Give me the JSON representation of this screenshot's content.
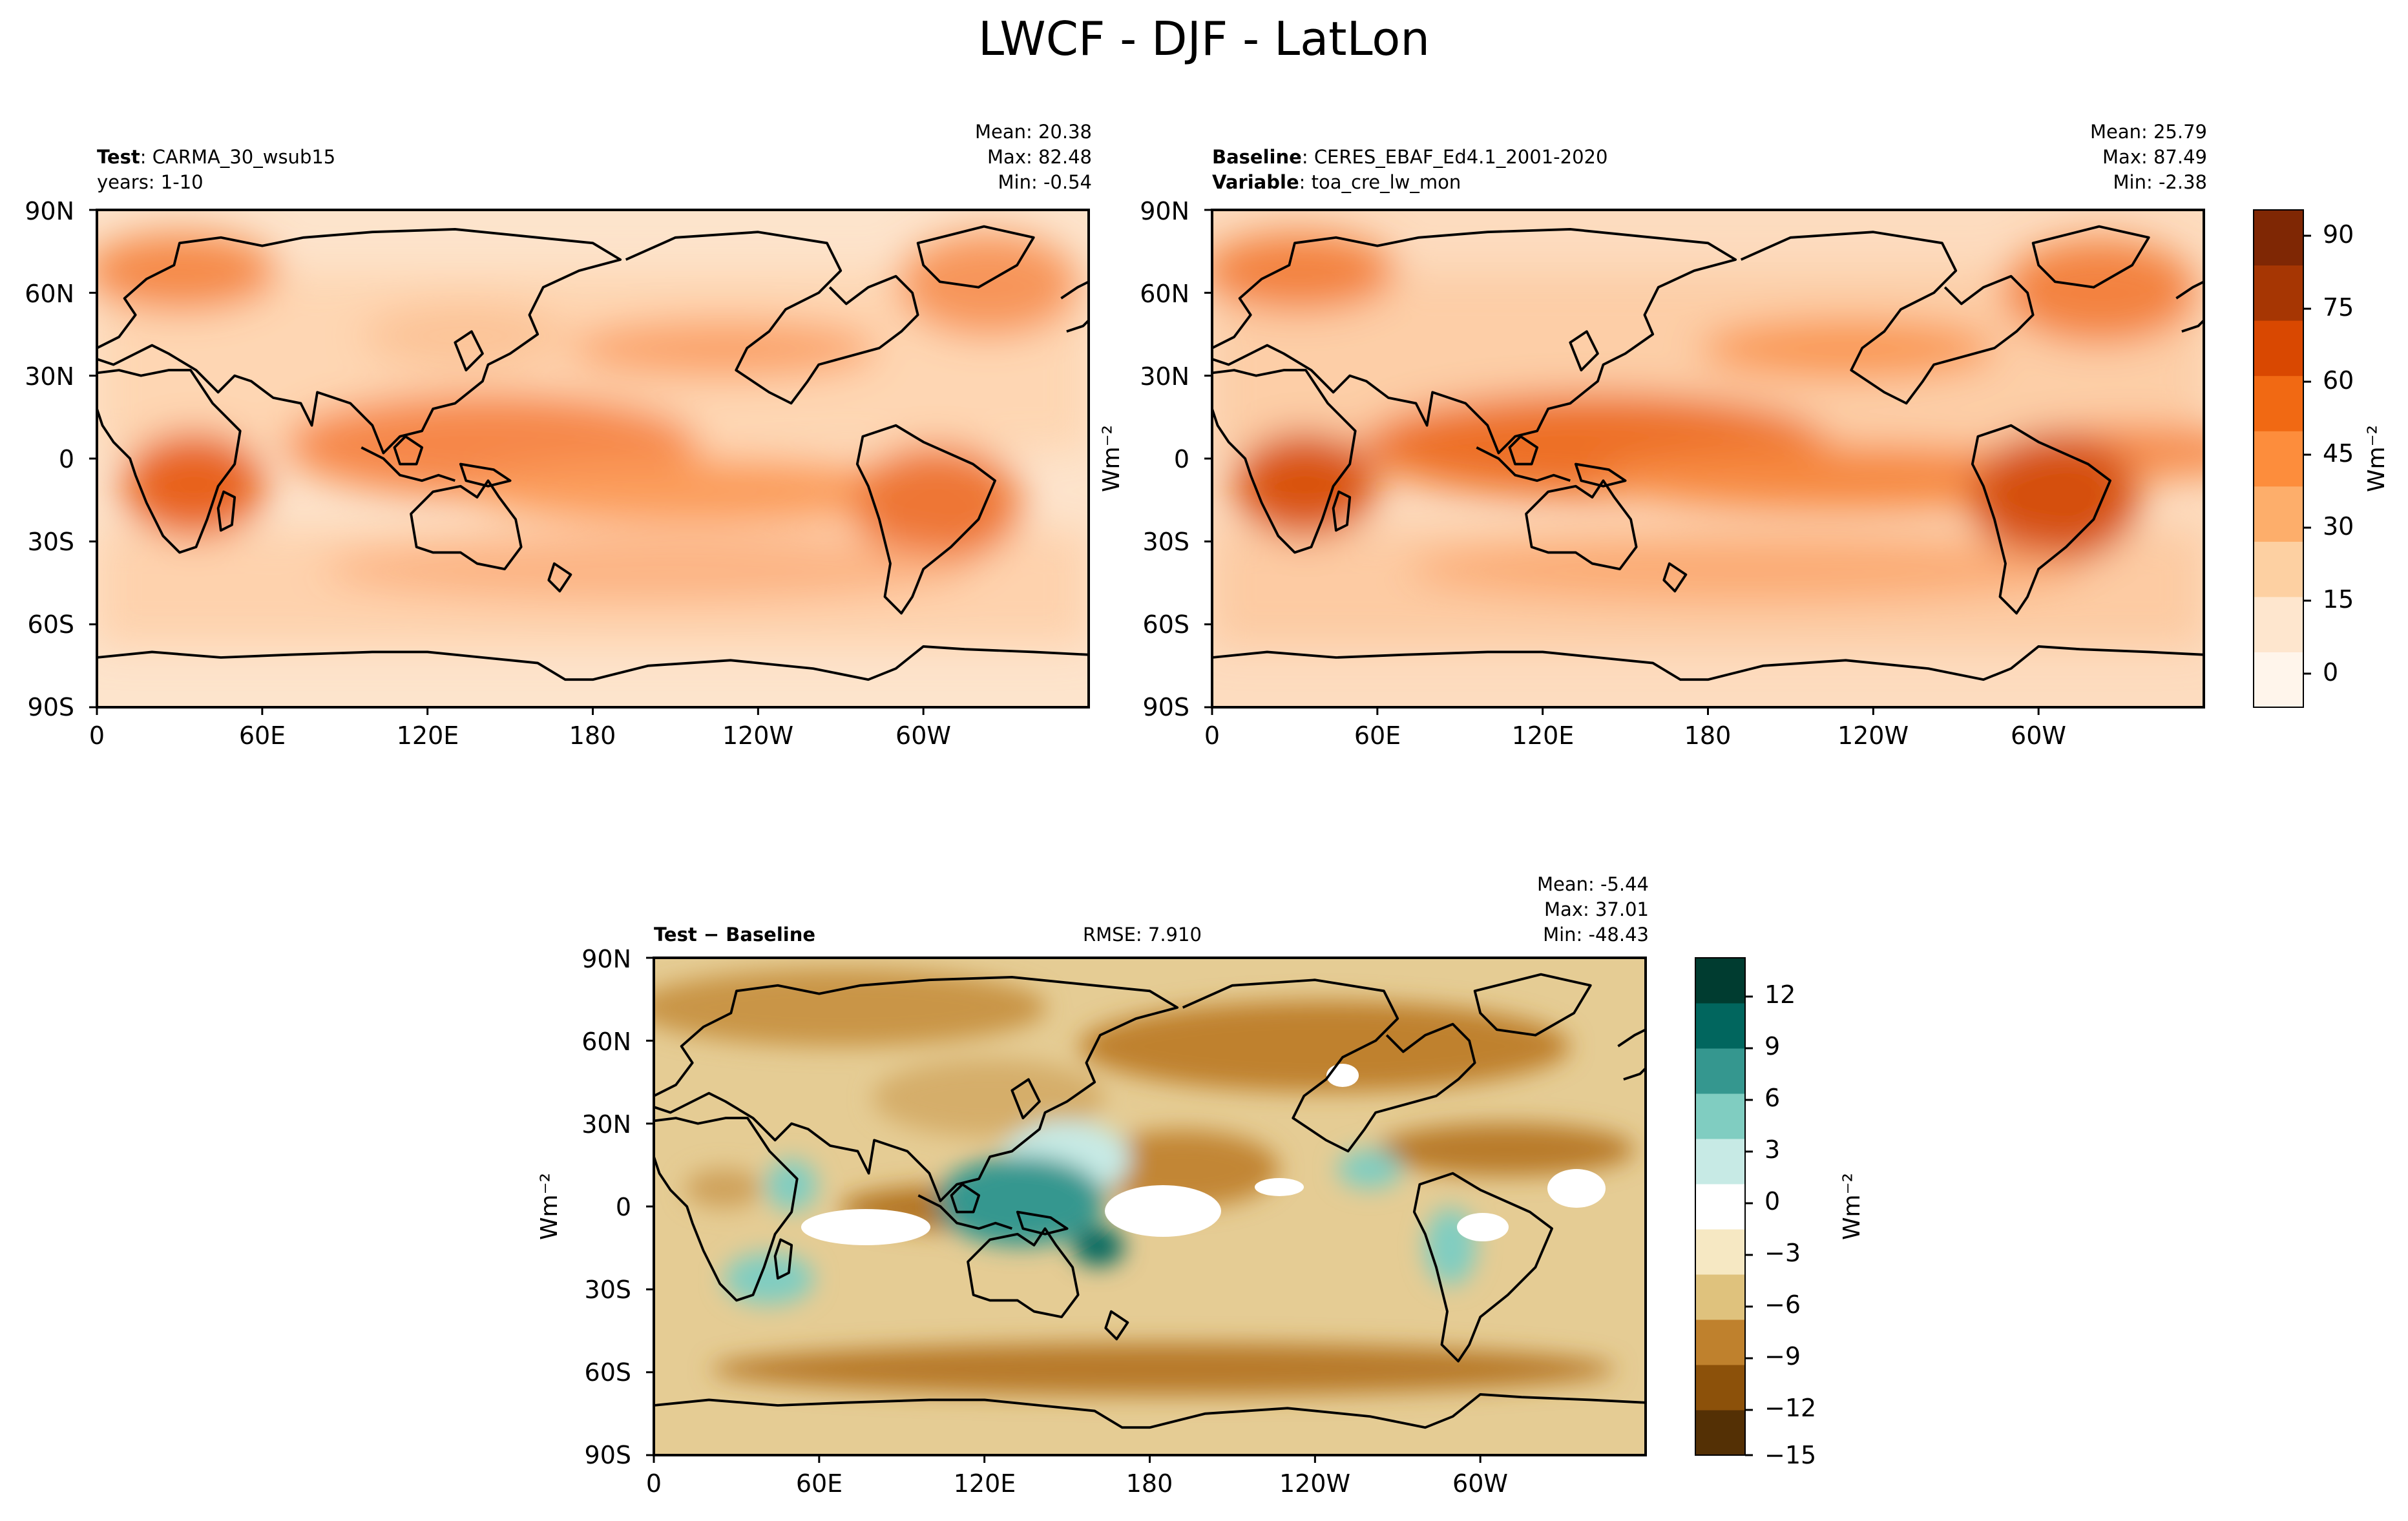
{
  "figure": {
    "title": "LWCF - DJF - LatLon"
  },
  "panels": {
    "test": {
      "label_key": "Test",
      "label_sep": ": ",
      "label_value": "CARMA_30_wsub15",
      "line2": "years: 1-10",
      "mean": "Mean: 20.38",
      "max": "Max: 82.48",
      "min": "Min: -0.54"
    },
    "baseline": {
      "label_key": "Baseline",
      "label_sep": ": ",
      "label_value": "CERES_EBAF_Ed4.1_2001-2020",
      "line2_key": "Variable",
      "line2_sep": ": ",
      "line2_value": "toa_cre_lw_mon",
      "mean": "Mean: 25.79",
      "max": "Max: 87.49",
      "min": "Min: -2.38"
    },
    "diff": {
      "label": "Test − Baseline",
      "rmse": "RMSE: 7.910",
      "mean": "Mean: -5.44",
      "max": "Max: 37.01",
      "min": "Min: -48.43"
    }
  },
  "axes": {
    "lat_ticks": [
      "90N",
      "60N",
      "30N",
      "0",
      "30S",
      "60S",
      "90S"
    ],
    "lon_ticks": [
      "0",
      "60E",
      "120E",
      "180",
      "120W",
      "60W"
    ],
    "unit": "Wm⁻²"
  },
  "colorbars": {
    "main": {
      "ticks": [
        "90",
        "75",
        "60",
        "45",
        "30",
        "15",
        "0"
      ],
      "colors": [
        "#fff5eb",
        "#fee6ce",
        "#fdd0a2",
        "#fdae6b",
        "#fd8d3c",
        "#f16913",
        "#d94801",
        "#a63603",
        "#7f2704"
      ]
    },
    "diff": {
      "ticks": [
        "12",
        "9",
        "6",
        "3",
        "0",
        "−3",
        "−6",
        "−9",
        "−12",
        "−15"
      ],
      "colors": [
        "#543005",
        "#8c510a",
        "#bf812d",
        "#dfc27d",
        "#f6e8c3",
        "#ffffff",
        "#c7eae5",
        "#80cdc1",
        "#35978f",
        "#01665e",
        "#003c30"
      ]
    }
  },
  "chart_data": [
    {
      "type": "heatmap",
      "title": "Test: CARMA_30_wsub15",
      "subtitle": "years: 1-10",
      "x_ticks": [
        "0",
        "60E",
        "120E",
        "180",
        "120W",
        "60W"
      ],
      "y_ticks": [
        "90N",
        "60N",
        "30N",
        "0",
        "30S",
        "60S",
        "90S"
      ],
      "xlim": [
        0,
        360
      ],
      "ylim": [
        -90,
        90
      ],
      "colorbar_ticks": [
        0,
        15,
        30,
        45,
        60,
        75,
        90
      ],
      "stats": {
        "mean": 20.38,
        "max": 82.48,
        "min": -0.54
      },
      "unit": "Wm⁻²"
    },
    {
      "type": "heatmap",
      "title": "Baseline: CERES_EBAF_Ed4.1_2001-2020",
      "subtitle": "Variable: toa_cre_lw_mon",
      "x_ticks": [
        "0",
        "60E",
        "120E",
        "180",
        "120W",
        "60W"
      ],
      "y_ticks": [
        "90N",
        "60N",
        "30N",
        "0",
        "30S",
        "60S",
        "90S"
      ],
      "xlim": [
        0,
        360
      ],
      "ylim": [
        -90,
        90
      ],
      "colorbar_ticks": [
        0,
        15,
        30,
        45,
        60,
        75,
        90
      ],
      "stats": {
        "mean": 25.79,
        "max": 87.49,
        "min": -2.38
      },
      "unit": "Wm⁻²"
    },
    {
      "type": "heatmap",
      "title": "Test − Baseline",
      "rmse": 7.91,
      "x_ticks": [
        "0",
        "60E",
        "120E",
        "180",
        "120W",
        "60W"
      ],
      "y_ticks": [
        "90N",
        "60N",
        "30N",
        "0",
        "30S",
        "60S",
        "90S"
      ],
      "xlim": [
        0,
        360
      ],
      "ylim": [
        -90,
        90
      ],
      "colorbar_ticks": [
        -15,
        -12,
        -9,
        -6,
        -3,
        0,
        3,
        6,
        9,
        12
      ],
      "stats": {
        "mean": -5.44,
        "max": 37.01,
        "min": -48.43
      },
      "unit": "Wm⁻²"
    }
  ]
}
